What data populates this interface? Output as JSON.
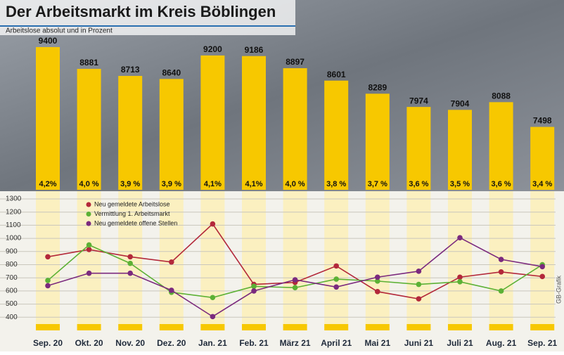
{
  "chart_data": [
    {
      "type": "bar",
      "title": "Der Arbeitsmarkt im Kreis Böblingen",
      "subtitle": "Arbeitslose absolut und in Prozent",
      "ylim": [
        6000,
        9500
      ],
      "series": [
        {
          "color": "#f7c800",
          "values": [
            9400,
            8881,
            8713,
            8640,
            9200,
            9186,
            8897,
            8601,
            8289,
            7974,
            7904,
            8088,
            7498
          ]
        },
        {
          "values": [
            4.2,
            4.0,
            3.9,
            3.9,
            4.1,
            4.1,
            4.0,
            3.8,
            3.7,
            3.6,
            3.5,
            3.6,
            3.4
          ],
          "value_labels": [
            "4,2%",
            "4,0 %",
            "3,9 %",
            "3,9 %",
            "4,1%",
            "4,1%",
            "4,0 %",
            "3,8 %",
            "3,7 %",
            "3,6 %",
            "3,5 %",
            "3,6 %",
            "3,4 %"
          ]
        }
      ]
    },
    {
      "type": "line",
      "annotation": "GB-Grafik",
      "categories": [
        "Sep. 20",
        "Okt. 20",
        "Nov. 20",
        "Dez. 20",
        "Jan. 21",
        "Feb. 21",
        "März 21",
        "April 21",
        "Mai 21",
        "Juni 21",
        "Juli 21",
        "Aug. 21",
        "Sep. 21"
      ],
      "ylim": [
        300,
        1300
      ],
      "yticks": [
        400,
        500,
        600,
        700,
        800,
        900,
        1000,
        1100,
        1200,
        1300
      ],
      "grid": true,
      "series": [
        {
          "name": "Neu gemeldete Arbeitslose",
          "color": "#b3283a",
          "values": [
            860,
            915,
            860,
            820,
            1110,
            650,
            665,
            790,
            595,
            540,
            705,
            745,
            710
          ]
        },
        {
          "name": "Vermittlung 1. Arbeitsmarkt",
          "color": "#5cb135",
          "values": [
            680,
            950,
            810,
            590,
            550,
            635,
            625,
            690,
            675,
            650,
            670,
            600,
            800
          ]
        },
        {
          "name": "Neu gemeldete offene Stellen",
          "color": "#7b2a7e",
          "values": [
            640,
            735,
            735,
            605,
            405,
            600,
            685,
            630,
            705,
            750,
            1005,
            840,
            785
          ]
        }
      ]
    }
  ]
}
